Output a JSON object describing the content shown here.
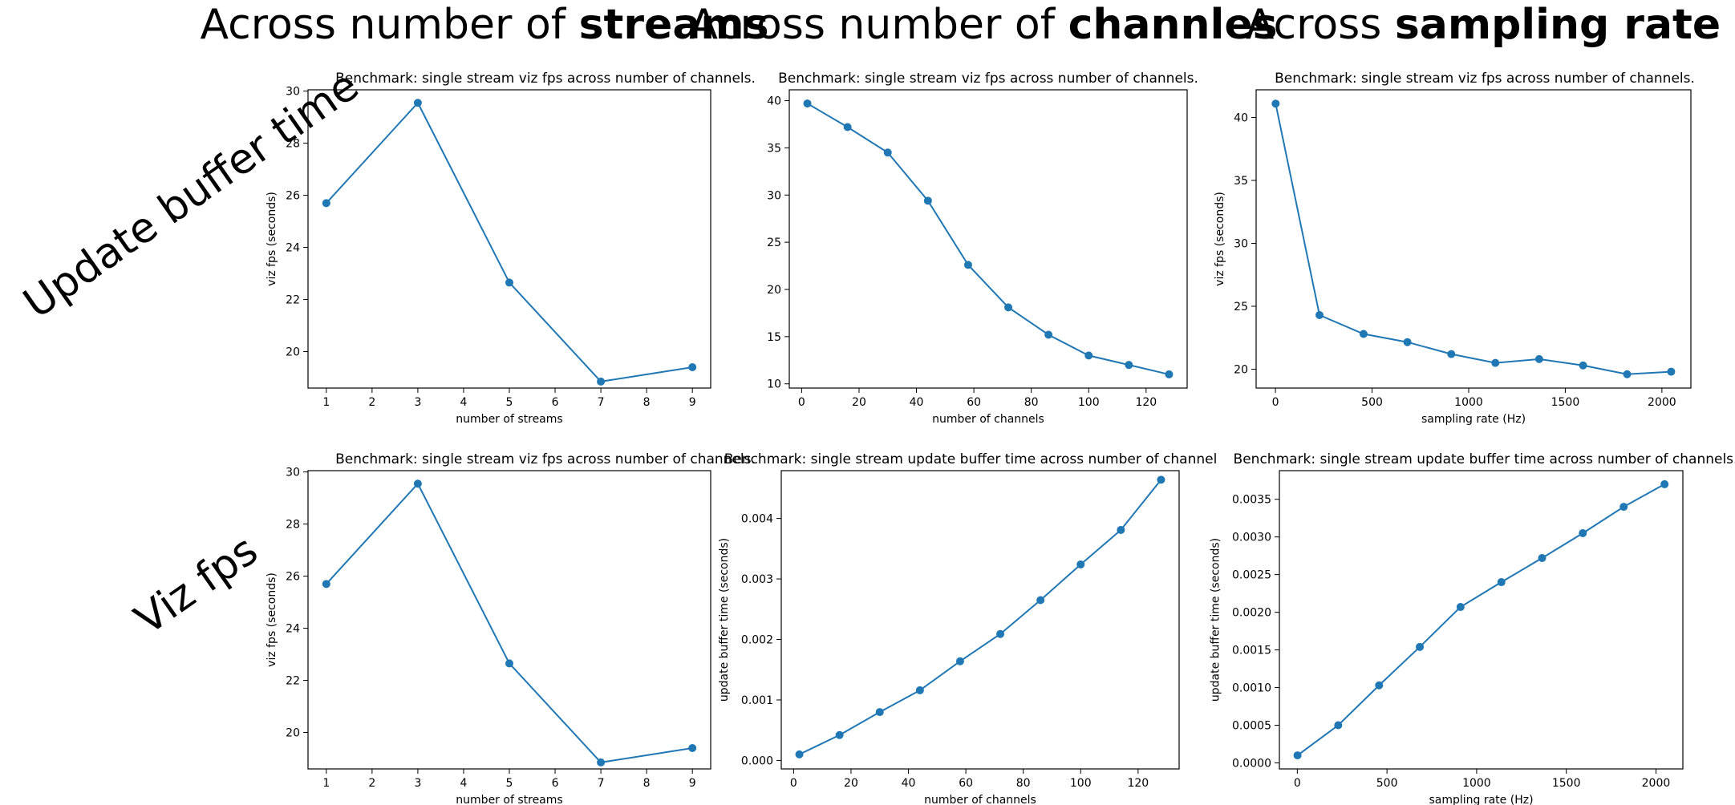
{
  "col_headings": [
    {
      "prefix": "Across number of ",
      "bold": "streams"
    },
    {
      "prefix": "Across number of ",
      "bold": "channles"
    },
    {
      "prefix": "Across ",
      "bold": "sampling rate"
    }
  ],
  "row_labels": [
    "Update buffer time",
    "Viz fps"
  ],
  "style": {
    "line_color": "#1f77b4"
  },
  "chart_data": [
    {
      "type": "line",
      "title": "Benchmark: single stream viz fps across number of channels.",
      "xlabel": "number of streams",
      "ylabel": "viz fps (seconds)",
      "x": [
        1,
        3,
        5,
        7,
        9
      ],
      "series": [
        {
          "values": [
            25.7,
            29.55,
            22.65,
            18.85,
            19.4
          ]
        }
      ],
      "xlim": [
        0.6,
        9.4
      ],
      "ylim": [
        18.6,
        30.05
      ],
      "xticks": [
        1,
        2,
        3,
        4,
        5,
        6,
        7,
        8,
        9
      ],
      "yticks": [
        20,
        22,
        24,
        26,
        28,
        30
      ],
      "ytick_labels": [
        "20",
        "22",
        "24",
        "26",
        "28",
        "30"
      ]
    },
    {
      "type": "line",
      "title": "Benchmark: single stream viz fps across number of channels.",
      "xlabel": "number of channels",
      "ylabel": "",
      "x": [
        2,
        16,
        30,
        44,
        58,
        72,
        86,
        100,
        114,
        128
      ],
      "series": [
        {
          "values": [
            39.7,
            37.2,
            34.5,
            29.4,
            22.6,
            18.1,
            15.2,
            13.0,
            12.0,
            11.0
          ]
        }
      ],
      "xlim": [
        -4.3,
        134.3
      ],
      "ylim": [
        9.55,
        41.15
      ],
      "xticks": [
        0,
        20,
        40,
        60,
        80,
        100,
        120
      ],
      "yticks": [
        10,
        15,
        20,
        25,
        30,
        35,
        40
      ],
      "ytick_labels": [
        "10",
        "15",
        "20",
        "25",
        "30",
        "35",
        "40"
      ]
    },
    {
      "type": "line",
      "title": "Benchmark: single stream viz fps across number of channels.",
      "xlabel": "sampling rate (Hz)",
      "ylabel": "viz fps (seconds)",
      "x": [
        1,
        228,
        456,
        683,
        910,
        1138,
        1365,
        1592,
        1820,
        2048
      ],
      "series": [
        {
          "values": [
            41.1,
            24.3,
            22.8,
            22.15,
            21.2,
            20.5,
            20.8,
            20.3,
            19.6,
            19.8
          ]
        }
      ],
      "xlim": [
        -100,
        2150
      ],
      "ylim": [
        18.5,
        42.2
      ],
      "xticks": [
        0,
        500,
        1000,
        1500,
        2000
      ],
      "yticks": [
        20,
        25,
        30,
        35,
        40
      ],
      "ytick_labels": [
        "20",
        "25",
        "30",
        "35",
        "40"
      ]
    },
    {
      "type": "line",
      "title": "Benchmark: single stream viz fps across number of channels.",
      "xlabel": "number of streams",
      "ylabel": "viz fps (seconds)",
      "x": [
        1,
        3,
        5,
        7,
        9
      ],
      "series": [
        {
          "values": [
            25.7,
            29.55,
            22.65,
            18.85,
            19.4
          ]
        }
      ],
      "xlim": [
        0.6,
        9.4
      ],
      "ylim": [
        18.6,
        30.05
      ],
      "xticks": [
        1,
        2,
        3,
        4,
        5,
        6,
        7,
        8,
        9
      ],
      "yticks": [
        20,
        22,
        24,
        26,
        28,
        30
      ],
      "ytick_labels": [
        "20",
        "22",
        "24",
        "26",
        "28",
        "30"
      ]
    },
    {
      "type": "line",
      "title": "Benchmark: single stream update buffer time across number of channel",
      "xlabel": "number of channels",
      "ylabel": "update buffer time (seconds)",
      "x": [
        2,
        16,
        30,
        44,
        58,
        72,
        86,
        100,
        114,
        128
      ],
      "series": [
        {
          "values": [
            0.0001,
            0.00042,
            0.0008,
            0.00116,
            0.00164,
            0.00209,
            0.00265,
            0.00324,
            0.00381,
            0.00464
          ]
        }
      ],
      "xlim": [
        -4.3,
        134.3
      ],
      "ylim": [
        -0.00014,
        0.00479
      ],
      "xticks": [
        0,
        20,
        40,
        60,
        80,
        100,
        120
      ],
      "yticks": [
        0,
        0.001,
        0.002,
        0.003,
        0.004
      ],
      "ytick_labels": [
        "0.000",
        "0.001",
        "0.002",
        "0.003",
        "0.004"
      ]
    },
    {
      "type": "line",
      "title": "Benchmark: single stream update buffer time across number of channels.",
      "xlabel": "sampling rate (Hz)",
      "ylabel": "update buffer time (seconds)",
      "x": [
        1,
        228,
        456,
        683,
        910,
        1138,
        1365,
        1592,
        1820,
        2048
      ],
      "series": [
        {
          "values": [
            0.0001,
            0.0005,
            0.00103,
            0.00154,
            0.00207,
            0.0024,
            0.00272,
            0.00305,
            0.0034,
            0.0037
          ]
        }
      ],
      "xlim": [
        -100,
        2150
      ],
      "ylim": [
        -8e-05,
        0.00388
      ],
      "xticks": [
        0,
        500,
        1000,
        1500,
        2000
      ],
      "yticks": [
        0,
        0.0005,
        0.001,
        0.0015,
        0.002,
        0.0025,
        0.003,
        0.0035
      ],
      "ytick_labels": [
        "0.0000",
        "0.0005",
        "0.0010",
        "0.0015",
        "0.0020",
        "0.0025",
        "0.0030",
        "0.0035"
      ]
    }
  ]
}
